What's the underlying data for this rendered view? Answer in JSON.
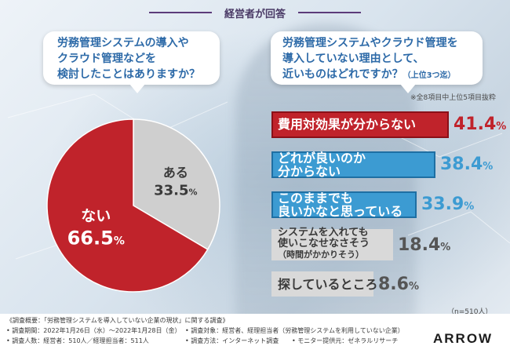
{
  "header": {
    "title": "経営者が回答"
  },
  "left_question": {
    "lines": [
      "労務管理システムの導入や",
      "クラウド管理などを",
      "検討したことはありますか？"
    ]
  },
  "right_question": {
    "lines": [
      "労務管理システムやクラウド管理を",
      "導入していない理由として、",
      "近いものはどれですか？"
    ],
    "suffix": "（上位3つ迄）"
  },
  "note": "※全8項目中上位5項目抜粋",
  "n_note": "（n=510人）",
  "colors": {
    "red": "#c0232b",
    "blue": "#3c9bd2",
    "gray_bar": "#d9d9d9",
    "pie_gray": "#cfcfcf",
    "pie_red": "#c0232b"
  },
  "chart_data": [
    {
      "type": "pie",
      "slices": [
        {
          "label": "ある",
          "value": 33.5,
          "unit": "%",
          "color": "#cfcfcf"
        },
        {
          "label": "ない",
          "value": 66.5,
          "unit": "%",
          "color": "#c0232b"
        }
      ]
    },
    {
      "type": "bar",
      "orientation": "horizontal",
      "categories": [
        "費用対効果が分からない",
        "どれが良いのか分からない",
        "このままでも良いかなと思っている",
        "システムを入れても使いこなせなさそう（時間がかかりそう）",
        "探しているところ"
      ],
      "values": [
        41.4,
        38.4,
        33.9,
        18.4,
        8.6
      ],
      "unit": "%",
      "bars": [
        {
          "lines": [
            "費用対効果が分からない"
          ],
          "value_text": "41.4",
          "unit": "%",
          "style": "red"
        },
        {
          "lines": [
            "どれが良いのか",
            "分からない"
          ],
          "value_text": "38.4",
          "unit": "%",
          "style": "blue"
        },
        {
          "lines": [
            "このままでも",
            "良いかなと思っている"
          ],
          "value_text": "33.9",
          "unit": "%",
          "style": "blue"
        },
        {
          "lines": [
            "システムを入れても",
            "使いこなせなさそう",
            "（時間がかかりそう）"
          ],
          "value_text": "18.4",
          "unit": "%",
          "style": "gray"
        },
        {
          "lines": [
            "探しているところ"
          ],
          "value_text": "8.6",
          "unit": "%",
          "style": "gray"
        }
      ]
    }
  ],
  "footer": {
    "title": "《調査概要：「労務管理システムを導入していない企業の現状」に関する調査》",
    "period": "• 調査期間：2022年1月26日（水）～2022年1月28日（金）",
    "subjects": "• 調査人数：経営者：510人／経理担当者：511人",
    "target": "• 調査対象：経営者、経理担当者（労務管理システムを利用していない企業）",
    "method": "• 調査方法：インターネット調査",
    "provider": "• モニター提供元：ゼネラルリサーチ",
    "logo": "ARROW"
  }
}
